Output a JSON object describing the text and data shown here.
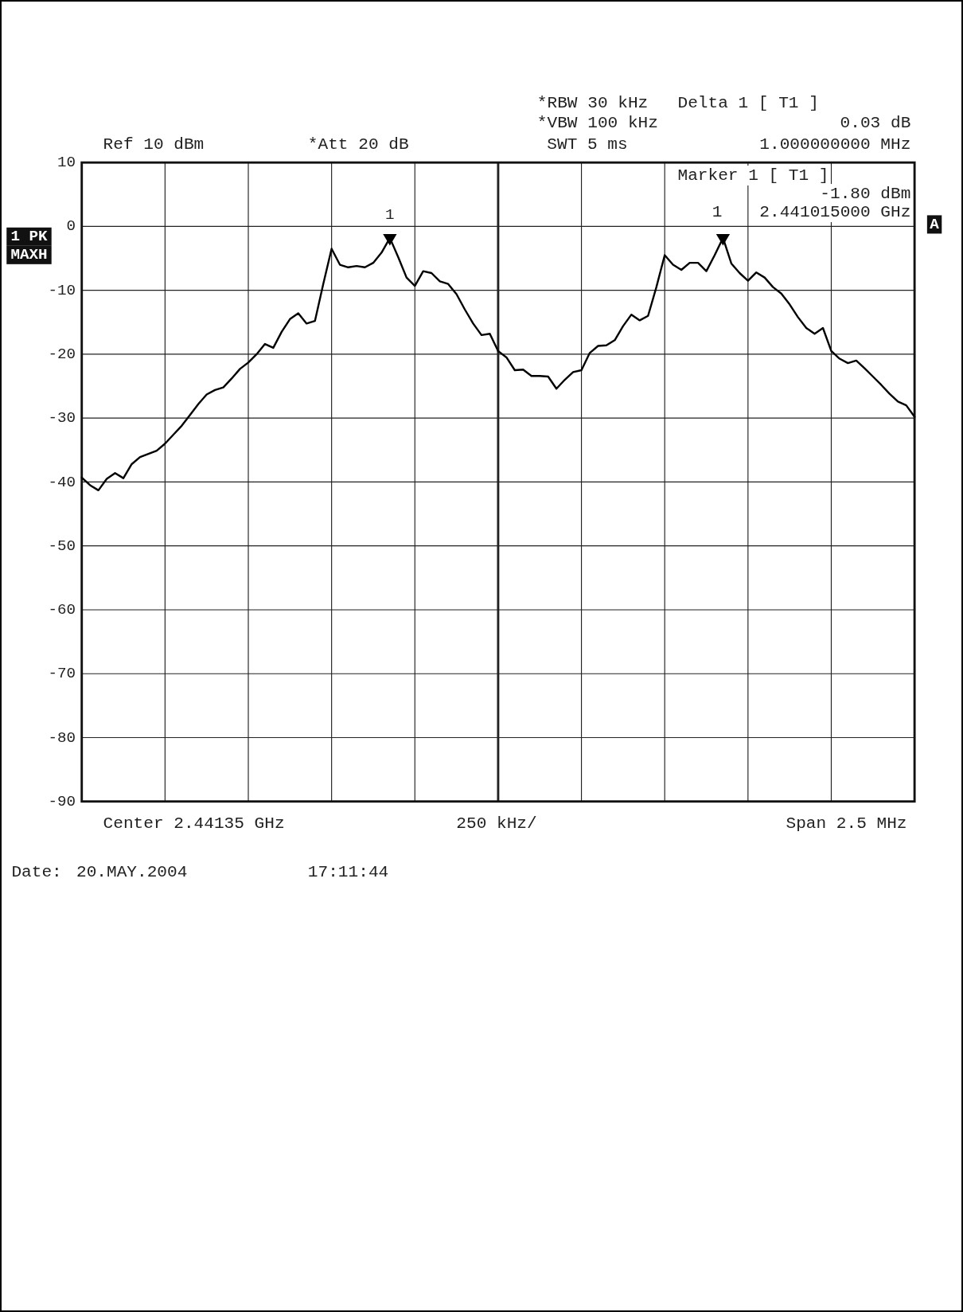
{
  "chart_data": {
    "type": "line",
    "annotations": [
      "Ref 10 dBm",
      "*Att 20 dB",
      "*RBW 30 kHz",
      "*VBW 100 kHz",
      "SWT 5 ms",
      "Delta 1 [ T1 ]",
      "0.03 dB",
      "1.000000000 MHz",
      "Marker 1 [ T1 ]",
      "-1.80 dBm",
      "1",
      "2.441015000 GHz",
      "A",
      "1 PK",
      "MAXH",
      "Center 2.44135 GHz",
      "250 kHz/",
      "Span 2.5 MHz",
      "Date:",
      "20.MAY.2004",
      "17:11:44",
      {
        "text": "1",
        "y": -1.8
      }
    ],
    "categories": [
      null,
      null,
      null,
      null,
      null,
      null,
      null,
      null,
      null,
      null,
      null,
      null,
      null,
      null,
      null,
      null,
      null,
      null,
      null,
      null,
      null,
      null,
      null,
      null,
      null,
      null,
      null,
      null,
      null,
      null,
      null,
      null,
      null,
      null,
      null,
      null,
      null,
      null,
      null,
      null,
      null,
      null,
      null,
      null,
      null,
      null,
      null,
      null,
      null,
      null,
      null,
      null,
      null,
      null,
      null,
      null,
      null,
      null,
      null,
      null,
      null,
      null,
      null,
      null,
      null,
      null,
      null,
      null,
      null,
      null,
      null,
      null,
      null,
      null,
      null,
      null,
      null,
      null,
      null,
      null,
      null,
      null,
      null,
      null,
      null,
      null,
      null,
      null,
      null,
      null,
      null,
      null,
      null,
      null,
      null,
      null,
      null,
      null,
      null,
      null,
      null
    ],
    "series": [
      {
        "color": "#000000",
        "values": [
          -39.3,
          -40.5,
          -41.3,
          -39.5,
          -38.6,
          -39.4,
          -37.2,
          -36.1,
          -35.6,
          -35.1,
          -34.0,
          -32.6,
          -31.2,
          -29.5,
          -27.8,
          -26.3,
          -25.6,
          -25.2,
          -23.8,
          -22.3,
          -21.3,
          -20.0,
          -18.4,
          -19.0,
          -16.5,
          -14.5,
          -13.6,
          -15.2,
          -14.8,
          -9.0,
          -3.5,
          -6.0,
          -6.4,
          -6.2,
          -6.4,
          -5.7,
          -4.1,
          -1.8,
          -4.8,
          -8.0,
          -9.3,
          -7.0,
          -7.3,
          -8.6,
          -9.0,
          -10.6,
          -13.0,
          -15.2,
          -17.0,
          -16.8,
          -19.5,
          -20.5,
          -22.5,
          -22.4,
          -23.4,
          -23.4,
          -23.5,
          -25.4,
          -24.0,
          -22.8,
          -22.5,
          -19.8,
          -18.7,
          -18.6,
          -17.8,
          -15.6,
          -13.8,
          -14.7,
          -14.0,
          -9.5,
          -4.5,
          -6.0,
          -6.8,
          -5.7,
          -5.7,
          -7.0,
          -4.5,
          -1.8,
          -5.8,
          -7.3,
          -8.5,
          -7.2,
          -8.0,
          -9.5,
          -10.5,
          -12.2,
          -14.2,
          -15.9,
          -16.8,
          -15.9,
          -19.5,
          -20.7,
          -21.4,
          -21.0,
          -22.2,
          -23.5,
          -24.8,
          -26.2,
          -27.4,
          -28.0,
          -29.8
        ]
      },
      {
        "type": "scatter",
        "color": "#000000",
        "marker": "triangle",
        "values": [
          null,
          null,
          null,
          null,
          null,
          null,
          null,
          null,
          null,
          null,
          null,
          null,
          null,
          null,
          null,
          null,
          null,
          null,
          null,
          null,
          null,
          null,
          null,
          null,
          null,
          null,
          null,
          null,
          null,
          null,
          null,
          null,
          null,
          null,
          null,
          null,
          null,
          -1.8,
          null,
          null,
          null,
          null,
          null,
          null,
          null,
          null,
          null,
          null,
          null,
          null,
          null,
          null,
          null,
          null,
          null,
          null,
          null,
          null,
          null,
          null,
          null,
          null,
          null,
          null,
          null,
          null,
          null,
          null,
          null,
          null,
          null,
          null,
          null,
          null,
          null,
          null,
          null,
          -1.8,
          null,
          null,
          null,
          null,
          null,
          null,
          null,
          null,
          null,
          null,
          null,
          null,
          null,
          null,
          null,
          null,
          null,
          null,
          null,
          null,
          null,
          null,
          null
        ]
      }
    ],
    "ylim": [
      -90,
      10
    ],
    "yticks": [
      10,
      0,
      -10,
      -20,
      -30,
      -40,
      -50,
      -60,
      -70,
      -80,
      -90
    ],
    "grid": true,
    "line_style": "solid"
  }
}
